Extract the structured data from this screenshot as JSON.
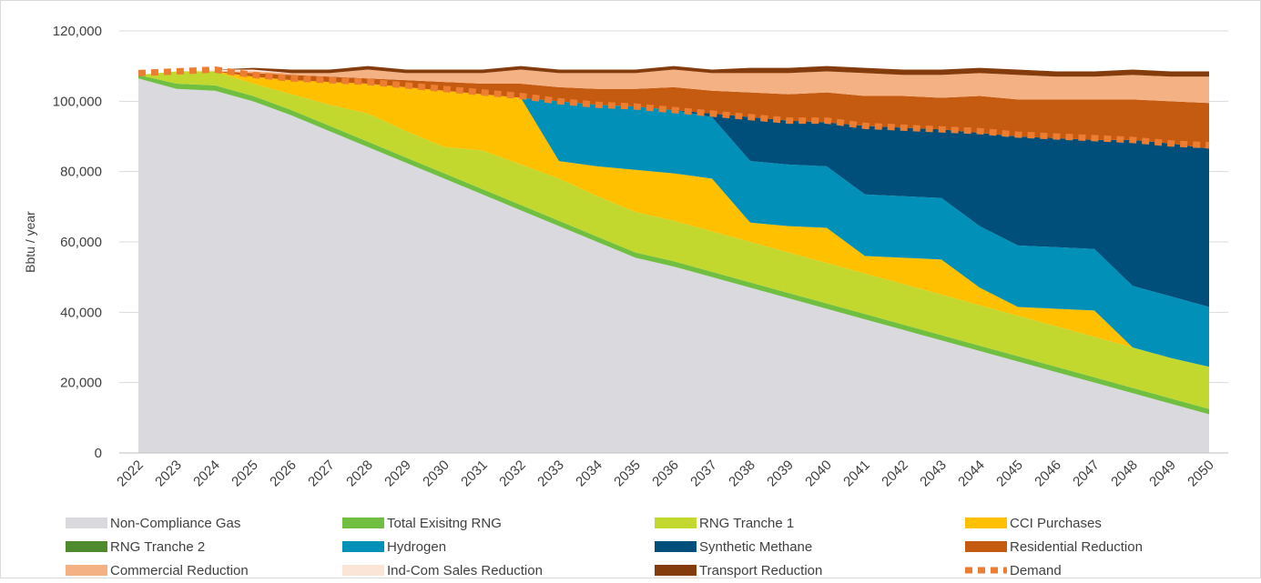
{
  "chart_data": {
    "type": "area",
    "y_label": "Bbtu / year",
    "ylim": [
      0,
      120000
    ],
    "yticks": [
      0,
      {
        "value": 20000,
        "label": "20,000"
      },
      {
        "value": 40000,
        "label": "40,000"
      },
      {
        "value": 60000,
        "label": "60,000"
      },
      {
        "value": 80000,
        "label": "80,000"
      },
      {
        "value": 100000,
        "label": "100,000"
      },
      {
        "value": 120000,
        "label": "120,000"
      }
    ],
    "grid": true,
    "stacked": true,
    "legend": "bottom",
    "categories": [
      "2022",
      "2023",
      "2024",
      "2025",
      "2026",
      "2027",
      "2028",
      "2029",
      "2030",
      "2031",
      "2032",
      "2033",
      "2034",
      "2035",
      "2036",
      "2037",
      "2038",
      "2039",
      "2040",
      "2041",
      "2042",
      "2043",
      "2044",
      "2045",
      "2046",
      "2047",
      "2048",
      "2049",
      "2050"
    ],
    "series": [
      {
        "name": "Non-Compliance Gas",
        "color": "#d9d9de",
        "values": [
          106500,
          103500,
          103000,
          100000,
          96000,
          91500,
          87000,
          82500,
          78000,
          73500,
          69000,
          64500,
          60000,
          55500,
          53000,
          50000,
          47000,
          44000,
          41000,
          38000,
          35000,
          32000,
          29000,
          26000,
          23000,
          20000,
          17000,
          14000,
          11000
        ]
      },
      {
        "name": "Total Exisitng RNG",
        "color": "#70bf41",
        "values": [
          1000,
          1500,
          1500,
          1500,
          1500,
          1500,
          1500,
          1500,
          1500,
          1500,
          1500,
          1500,
          1500,
          1500,
          1500,
          1500,
          1500,
          1500,
          1500,
          1500,
          1500,
          1500,
          1500,
          1500,
          1500,
          1500,
          1500,
          1500,
          1500
        ]
      },
      {
        "name": "RNG Tranche 1",
        "color": "#c2d82e",
        "values": [
          0,
          3500,
          4000,
          3500,
          4500,
          6000,
          8000,
          7500,
          7500,
          11000,
          11500,
          12000,
          11500,
          11500,
          11500,
          11500,
          11500,
          11500,
          11500,
          11500,
          11500,
          11500,
          11500,
          11500,
          11500,
          11500,
          11500,
          11500,
          12000
        ]
      },
      {
        "name": "CCI Purchases",
        "color": "#ffc000",
        "values": [
          0,
          0,
          0,
          2000,
          4000,
          6500,
          8500,
          12500,
          16000,
          16000,
          19000,
          5000,
          8500,
          12000,
          13500,
          15000,
          5500,
          7500,
          10000,
          5000,
          7500,
          10000,
          5000,
          2500,
          5000,
          7500,
          0,
          0,
          0
        ]
      },
      {
        "name": "RNG Tranche 2",
        "color": "#4e8a2e",
        "values": [
          0,
          0,
          0,
          0,
          0,
          0,
          0,
          0,
          0,
          0,
          0,
          0,
          0,
          0,
          0,
          0,
          0,
          0,
          0,
          0,
          0,
          0,
          0,
          0,
          0,
          0,
          0,
          0,
          0
        ]
      },
      {
        "name": "Hydrogen",
        "color": "#0090b8",
        "values": [
          0,
          0,
          0,
          0,
          0,
          0,
          0,
          0,
          0,
          0,
          0,
          17000,
          17500,
          18000,
          18000,
          17500,
          17500,
          17500,
          17500,
          17500,
          17500,
          17500,
          17500,
          17500,
          17500,
          17500,
          17500,
          17500,
          17000
        ]
      },
      {
        "name": "Synthetic Methane",
        "color": "#004f7a",
        "values": [
          0,
          0,
          0,
          0,
          0,
          0,
          0,
          0,
          0,
          0,
          0,
          0,
          0,
          0,
          0,
          1000,
          12500,
          12500,
          12500,
          19500,
          19500,
          19500,
          26500,
          31000,
          31000,
          31000,
          41500,
          43500,
          45000
        ]
      },
      {
        "name": "Residential Reduction",
        "color": "#c55a11",
        "values": [
          0,
          0,
          0,
          1000,
          1500,
          1500,
          1500,
          2000,
          2500,
          3000,
          4000,
          4000,
          4500,
          5000,
          6500,
          6500,
          7000,
          7500,
          8500,
          8500,
          9000,
          9000,
          10500,
          10500,
          11000,
          11500,
          11500,
          12000,
          13000
        ]
      },
      {
        "name": "Commercial Reduction",
        "color": "#f4b183",
        "values": [
          0,
          0,
          0,
          500,
          500,
          1000,
          2500,
          2000,
          2500,
          3000,
          4000,
          4000,
          4500,
          4500,
          5000,
          5000,
          5500,
          6000,
          6000,
          6500,
          6000,
          6500,
          6500,
          7000,
          6500,
          6500,
          7000,
          7000,
          7500
        ]
      },
      {
        "name": "Ind-Com Sales Reduction",
        "color": "#fbe5d6",
        "values": [
          0,
          0,
          500,
          500,
          0,
          0,
          0,
          0,
          0,
          0,
          0,
          0,
          0,
          0,
          0,
          0,
          0,
          0,
          0,
          0,
          0,
          0,
          0,
          0,
          0,
          0,
          0,
          0,
          0
        ]
      },
      {
        "name": "Transport Reduction",
        "color": "#843c0c",
        "values": [
          0,
          0,
          0,
          500,
          1000,
          1000,
          1000,
          1000,
          1000,
          1000,
          1000,
          1000,
          1000,
          1000,
          1000,
          1000,
          1500,
          1500,
          1500,
          1500,
          1500,
          1500,
          1500,
          1500,
          1500,
          1500,
          1500,
          1500,
          1500
        ]
      },
      {
        "name": "Demand",
        "color": "#ed7d31",
        "type": "line",
        "values": [
          108000,
          108500,
          109000,
          107500,
          106500,
          106000,
          105500,
          104500,
          103500,
          102500,
          101500,
          100000,
          99000,
          98500,
          97500,
          96500,
          95500,
          94500,
          94500,
          93000,
          92500,
          92000,
          91500,
          90500,
          90000,
          89500,
          89000,
          88000,
          87500
        ]
      }
    ]
  }
}
